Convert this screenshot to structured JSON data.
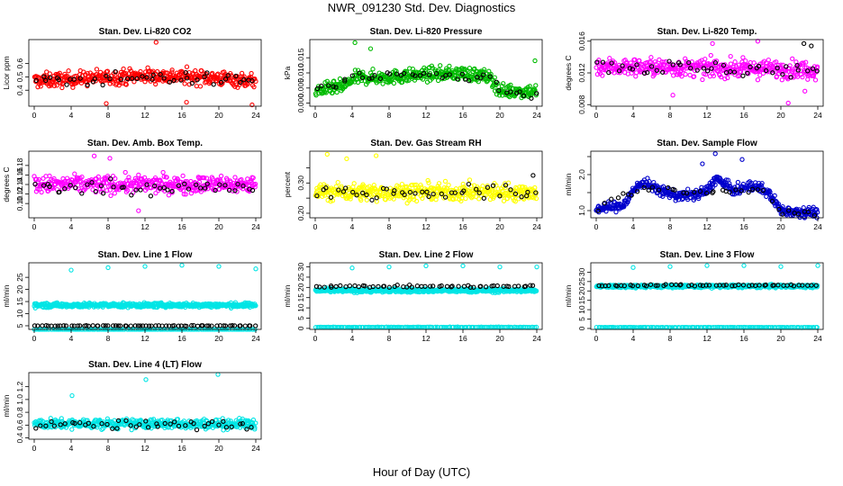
{
  "figure": {
    "title": "NWR_091230  Std. Dev. Diagnostics",
    "xlabel": "Hour of Day (UTC)"
  },
  "chart_data": [
    {
      "type": "scatter",
      "title": "Stan. Dev. Li-820 CO2",
      "ylabel": "Licor ppm",
      "xlim": [
        0,
        24
      ],
      "ylim": [
        0.28,
        0.78
      ],
      "xticks": [
        0,
        4,
        8,
        12,
        16,
        20,
        24
      ],
      "yticks": [
        0.4,
        0.5,
        0.6
      ],
      "ytick_labels": [
        "0.4",
        "0.5",
        "0.6"
      ],
      "series": [
        {
          "color": "#ff0000",
          "profile": [
            [
              0,
              0.47
            ],
            [
              6,
              0.49
            ],
            [
              12,
              0.51
            ],
            [
              18,
              0.5
            ],
            [
              24,
              0.47
            ]
          ],
          "spread": 0.055,
          "n": 420,
          "outliers": [
            [
              13.2,
              0.76
            ],
            [
              7.8,
              0.3
            ],
            [
              16.5,
              0.31
            ],
            [
              23.6,
              0.29
            ]
          ]
        },
        {
          "color": "#000000",
          "profile": [
            [
              0,
              0.46
            ],
            [
              12,
              0.5
            ],
            [
              24,
              0.47
            ]
          ],
          "spread": 0.045,
          "n": 45,
          "outliers": []
        }
      ]
    },
    {
      "type": "scatter",
      "title": "Stan. Dev. Li-820 Pressure",
      "ylabel": "kPa",
      "xlim": [
        0,
        24
      ],
      "ylim": [
        -0.001,
        0.021
      ],
      "xticks": [
        0,
        4,
        8,
        12,
        16,
        20,
        24
      ],
      "yticks": [
        0.0,
        0.005,
        0.01,
        0.015
      ],
      "ytick_labels": [
        "0.000",
        "0.005",
        "0.010",
        "0.015"
      ],
      "series": [
        {
          "color": "#00bb00",
          "profile": [
            [
              0,
              0.004
            ],
            [
              3,
              0.0055
            ],
            [
              4.5,
              0.0085
            ],
            [
              8,
              0.0085
            ],
            [
              12,
              0.0095
            ],
            [
              16,
              0.01
            ],
            [
              19,
              0.0085
            ],
            [
              20,
              0.004
            ],
            [
              24,
              0.004
            ]
          ],
          "spread": 0.0022,
          "n": 440,
          "outliers": [
            [
              4.3,
              0.02
            ],
            [
              23.8,
              0.014
            ],
            [
              6,
              0.018
            ]
          ]
        },
        {
          "color": "#000000",
          "profile": [
            [
              0,
              0.004
            ],
            [
              4.5,
              0.0085
            ],
            [
              12,
              0.0095
            ],
            [
              19,
              0.0085
            ],
            [
              20,
              0.004
            ],
            [
              24,
              0.003
            ]
          ],
          "spread": 0.0018,
          "n": 45,
          "outliers": []
        }
      ]
    },
    {
      "type": "scatter",
      "title": "Stan. Dev. Li-820 Temp.",
      "ylabel": "degrees C",
      "xlim": [
        0,
        24
      ],
      "ylim": [
        0.0078,
        0.0162
      ],
      "xticks": [
        0,
        4,
        8,
        12,
        16,
        20,
        24
      ],
      "yticks": [
        0.008,
        0.012,
        0.016
      ],
      "ytick_labels": [
        "0.008",
        "0.012",
        "0.016"
      ],
      "series": [
        {
          "color": "#ff00ff",
          "profile": [
            [
              0,
              0.0128
            ],
            [
              12,
              0.0126
            ],
            [
              24,
              0.0124
            ]
          ],
          "spread": 0.0011,
          "n": 420,
          "outliers": [
            [
              8.3,
              0.0092
            ],
            [
              17.5,
              0.016
            ],
            [
              20.8,
              0.0082
            ],
            [
              12.6,
              0.0157
            ],
            [
              22.6,
              0.0097
            ]
          ]
        },
        {
          "color": "#000000",
          "profile": [
            [
              0,
              0.013
            ],
            [
              12,
              0.0125
            ],
            [
              24,
              0.0124
            ]
          ],
          "spread": 0.001,
          "n": 45,
          "outliers": [
            [
              23.3,
              0.0154
            ],
            [
              22.5,
              0.0157
            ]
          ]
        }
      ]
    },
    {
      "type": "scatter",
      "title": "Stan. Dev. Amb. Box Temp.",
      "ylabel": "degrees C",
      "xlim": [
        0,
        24
      ],
      "ylim": [
        0.07,
        0.21
      ],
      "xticks": [
        0,
        4,
        8,
        12,
        16,
        20,
        24
      ],
      "yticks": [
        0.1,
        0.12,
        0.14,
        0.16,
        0.18
      ],
      "ytick_labels": [
        "0.10",
        "0.12",
        "0.14",
        "0.16",
        "0.18"
      ],
      "series": [
        {
          "color": "#ff00ff",
          "profile": [
            [
              0,
              0.14
            ],
            [
              12,
              0.14
            ],
            [
              24,
              0.14
            ]
          ],
          "spread": 0.018,
          "n": 400,
          "outliers": [
            [
              6.5,
              0.2
            ],
            [
              8.2,
              0.195
            ],
            [
              11.3,
              0.085
            ]
          ]
        },
        {
          "color": "#000000",
          "profile": [
            [
              0,
              0.135
            ],
            [
              12,
              0.135
            ],
            [
              24,
              0.13
            ]
          ],
          "spread": 0.015,
          "n": 45,
          "outliers": []
        }
      ]
    },
    {
      "type": "scatter",
      "title": "Stan. Dev. Gas Stream RH",
      "ylabel": "percent",
      "xlim": [
        0,
        24
      ],
      "ylim": [
        0.185,
        0.405
      ],
      "xticks": [
        0,
        4,
        8,
        12,
        16,
        20,
        24
      ],
      "yticks": [
        0.2,
        0.25,
        0.3,
        0.35
      ],
      "ytick_labels": [
        "0.20",
        "",
        "0.30",
        ""
      ],
      "series": [
        {
          "color": "#ffff00",
          "profile": [
            [
              0,
              0.27
            ],
            [
              12,
              0.27
            ],
            [
              24,
              0.27
            ]
          ],
          "spread": 0.028,
          "n": 420,
          "outliers": [
            [
              1.3,
              0.395
            ],
            [
              3.4,
              0.38
            ],
            [
              6.6,
              0.39
            ]
          ]
        },
        {
          "color": "#000000",
          "profile": [
            [
              0,
              0.265
            ],
            [
              12,
              0.27
            ],
            [
              24,
              0.265
            ]
          ],
          "spread": 0.025,
          "n": 45,
          "outliers": [
            [
              23.6,
              0.325
            ]
          ]
        }
      ]
    },
    {
      "type": "scatter",
      "title": "Stan. Dev. Sample Flow",
      "ylabel": "ml/min",
      "xlim": [
        0,
        24
      ],
      "ylim": [
        0.8,
        2.65
      ],
      "xticks": [
        0,
        4,
        8,
        12,
        16,
        20,
        24
      ],
      "yticks": [
        1.0,
        1.5,
        2.0,
        2.5
      ],
      "ytick_labels": [
        "1.0",
        "",
        "2.0",
        ""
      ],
      "series": [
        {
          "color": "#0000cc",
          "profile": [
            [
              0,
              1.05
            ],
            [
              3,
              1.15
            ],
            [
              4,
              1.55
            ],
            [
              5,
              1.8
            ],
            [
              6.5,
              1.6
            ],
            [
              9,
              1.4
            ],
            [
              11,
              1.45
            ],
            [
              12,
              1.55
            ],
            [
              13,
              1.9
            ],
            [
              14,
              1.7
            ],
            [
              15,
              1.55
            ],
            [
              17,
              1.7
            ],
            [
              18,
              1.6
            ],
            [
              19,
              1.4
            ],
            [
              20,
              1.0
            ],
            [
              24,
              0.95
            ]
          ],
          "spread": 0.14,
          "n": 460,
          "outliers": [
            [
              11.5,
              2.3
            ],
            [
              12.9,
              2.58
            ],
            [
              15.8,
              2.42
            ]
          ]
        },
        {
          "color": "#000000",
          "profile": [
            [
              0,
              1.05
            ],
            [
              5,
              1.6
            ],
            [
              12,
              1.5
            ],
            [
              18,
              1.55
            ],
            [
              20,
              1.0
            ],
            [
              24,
              0.95
            ]
          ],
          "spread": 0.1,
          "n": 40,
          "outliers": []
        }
      ]
    },
    {
      "type": "scatter",
      "title": "Stan. Dev. Line 1 Flow",
      "ylabel": "ml/min",
      "xlim": [
        0,
        24
      ],
      "ylim": [
        3.5,
        31
      ],
      "xticks": [
        0,
        4,
        8,
        12,
        16,
        20,
        24
      ],
      "yticks": [
        5,
        10,
        15,
        20,
        25
      ],
      "ytick_labels": [
        "5",
        "10",
        "15",
        "20",
        "25"
      ],
      "series": [
        {
          "color": "#00e5e5",
          "profile": [
            [
              0,
              13.5
            ],
            [
              24,
              13.5
            ]
          ],
          "spread": 0.9,
          "n": 520,
          "outliers": [
            [
              4,
              28
            ],
            [
              8,
              29
            ],
            [
              12,
              29.5
            ],
            [
              16,
              30
            ],
            [
              20,
              29.5
            ],
            [
              24,
              28.5
            ]
          ]
        },
        {
          "color": "#00e5e5",
          "profile": [
            [
              0,
              3.2
            ],
            [
              24,
              3.2
            ]
          ],
          "spread": 0.05,
          "n": 140,
          "outliers": []
        },
        {
          "color": "#000000",
          "profile": [
            [
              0.5,
              5.0
            ],
            [
              24,
              5.0
            ]
          ],
          "spread": 0.12,
          "n": 70,
          "outliers": []
        }
      ]
    },
    {
      "type": "scatter",
      "title": "Stan. Dev. Line 2 Flow",
      "ylabel": "ml/min",
      "xlim": [
        0,
        24
      ],
      "ylim": [
        -0.5,
        32
      ],
      "xticks": [
        0,
        4,
        8,
        12,
        16,
        20,
        24
      ],
      "yticks": [
        0,
        5,
        10,
        15,
        20,
        25,
        30
      ],
      "ytick_labels": [
        "0",
        "5",
        "10",
        "15",
        "20",
        "25",
        "30"
      ],
      "series": [
        {
          "color": "#00e5e5",
          "profile": [
            [
              0,
              18.5
            ],
            [
              24,
              18.5
            ]
          ],
          "spread": 0.9,
          "n": 520,
          "outliers": [
            [
              4,
              29.5
            ],
            [
              8,
              30
            ],
            [
              12,
              30.5
            ],
            [
              16,
              30.5
            ],
            [
              20,
              30
            ],
            [
              24,
              30
            ]
          ]
        },
        {
          "color": "#00e5e5",
          "profile": [
            [
              0,
              0.6
            ],
            [
              24,
              0.6
            ]
          ],
          "spread": 0.1,
          "n": 150,
          "outliers": []
        },
        {
          "color": "#000000",
          "profile": [
            [
              0,
              20.5
            ],
            [
              24,
              20.5
            ]
          ],
          "spread": 0.5,
          "n": 55,
          "outliers": []
        }
      ]
    },
    {
      "type": "scatter",
      "title": "Stan. Dev. Line 3 Flow",
      "ylabel": "ml/min",
      "xlim": [
        0,
        24
      ],
      "ylim": [
        -0.5,
        35
      ],
      "xticks": [
        0,
        4,
        8,
        12,
        16,
        20,
        24
      ],
      "yticks": [
        0,
        5,
        10,
        15,
        20,
        25,
        30
      ],
      "ytick_labels": [
        "0",
        "5",
        "10",
        "15",
        "20",
        "25",
        "30"
      ],
      "series": [
        {
          "color": "#00e5e5",
          "profile": [
            [
              0,
              22.5
            ],
            [
              24,
              22.5
            ]
          ],
          "spread": 0.8,
          "n": 520,
          "outliers": [
            [
              4,
              32.5
            ],
            [
              8,
              33
            ],
            [
              12,
              33.5
            ],
            [
              16,
              33.5
            ],
            [
              20,
              33
            ],
            [
              24,
              33.5
            ]
          ]
        },
        {
          "color": "#00e5e5",
          "profile": [
            [
              0,
              0.6
            ],
            [
              24,
              0.6
            ]
          ],
          "spread": 0.1,
          "n": 150,
          "outliers": []
        },
        {
          "color": "#000000",
          "profile": [
            [
              0,
              23
            ],
            [
              24,
              23
            ]
          ],
          "spread": 0.5,
          "n": 55,
          "outliers": []
        }
      ]
    },
    {
      "type": "scatter",
      "title": "Stan. Dev. Line 4 (LT) Flow",
      "ylabel": "ml/min",
      "xlim": [
        0,
        24
      ],
      "ylim": [
        0.38,
        1.42
      ],
      "xticks": [
        0,
        4,
        8,
        12,
        16,
        20,
        24
      ],
      "yticks": [
        0.4,
        0.6,
        0.8,
        1.0,
        1.2
      ],
      "ytick_labels": [
        "0.4",
        "0.6",
        "0.8",
        "1.0",
        "1.2"
      ],
      "series": [
        {
          "color": "#00e5e5",
          "profile": [
            [
              0,
              0.62
            ],
            [
              24,
              0.62
            ]
          ],
          "spread": 0.075,
          "n": 440,
          "outliers": [
            [
              4.1,
              1.06
            ],
            [
              12.1,
              1.31
            ],
            [
              19.9,
              1.39
            ]
          ]
        },
        {
          "color": "#000000",
          "profile": [
            [
              0,
              0.6
            ],
            [
              24,
              0.6
            ]
          ],
          "spread": 0.07,
          "n": 45,
          "outliers": []
        }
      ]
    }
  ]
}
